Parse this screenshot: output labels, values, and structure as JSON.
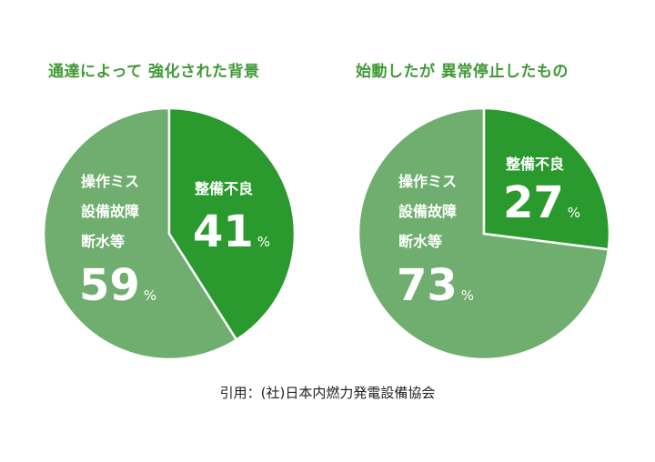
{
  "colors": {
    "dark_green": "#2a9a2e",
    "light_green": "#6fae6f",
    "title_green": "#3f9a36"
  },
  "source": "引用：(社)日本内燃力発電設備協会",
  "chart_data": [
    {
      "type": "pie",
      "title": "通達によって 強化された背景",
      "slices": [
        {
          "label": "整備不良",
          "value": 41,
          "value_label": "41",
          "color": "#2a9a2e"
        },
        {
          "label_lines": [
            "操作ミス",
            "設備故障",
            "断水等"
          ],
          "value": 59,
          "value_label": "59",
          "color": "#6fae6f"
        }
      ],
      "unit": "%"
    },
    {
      "type": "pie",
      "title": "始動したが 異常停止したもの",
      "slices": [
        {
          "label": "整備不良",
          "value": 27,
          "value_label": "27",
          "color": "#2a9a2e"
        },
        {
          "label_lines": [
            "操作ミス",
            "設備故障",
            "断水等"
          ],
          "value": 73,
          "value_label": "73",
          "color": "#6fae6f"
        }
      ],
      "unit": "%"
    }
  ]
}
